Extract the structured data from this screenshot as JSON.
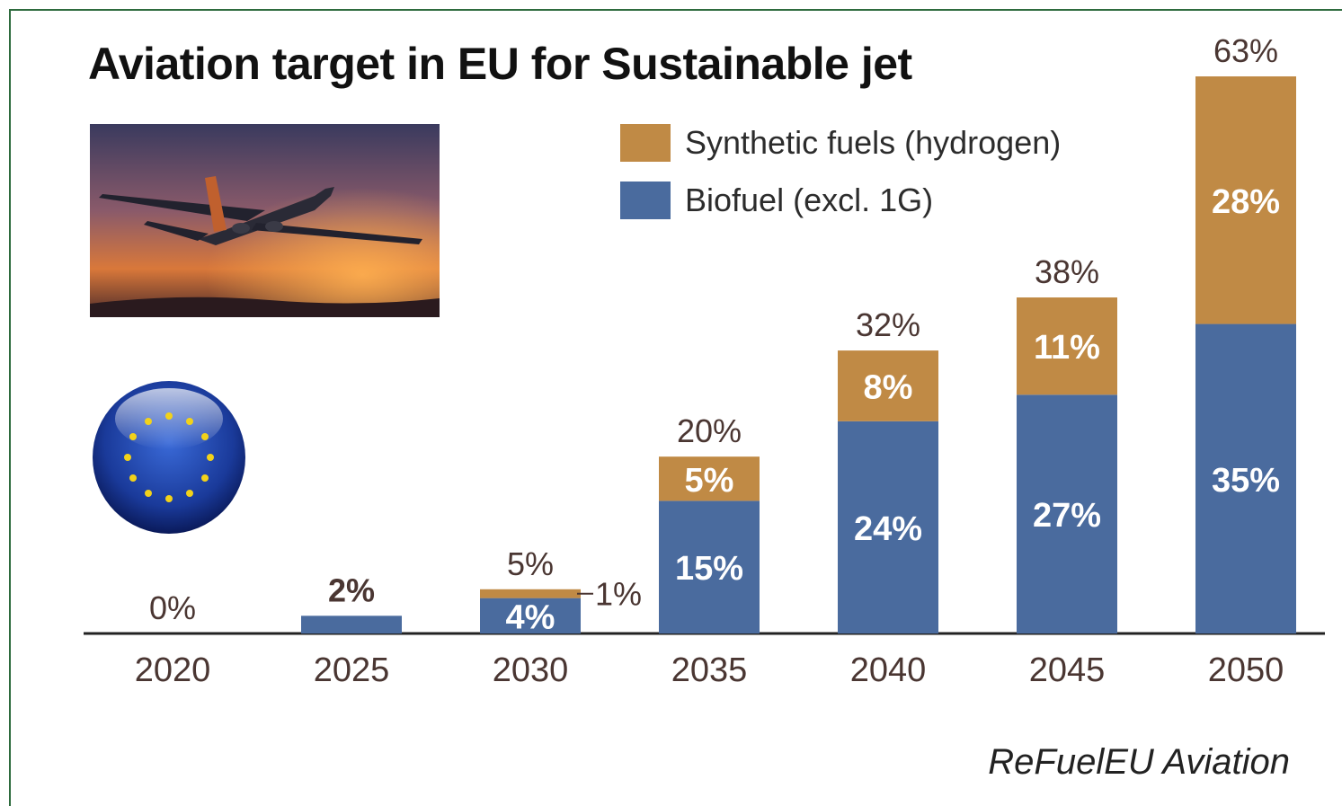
{
  "colors": {
    "frame": "#2e6b3e",
    "biofuel": "#4a6b9e",
    "synthetic": "#c08a45",
    "total_label": "#4a3632",
    "inside_label": "#ffffff",
    "axis": "#222222"
  },
  "chart_data": {
    "type": "bar",
    "stacked": true,
    "title": "Aviation target in EU for Sustainable jet",
    "categories": [
      "2020",
      "2025",
      "2030",
      "2035",
      "2040",
      "2045",
      "2050"
    ],
    "series": [
      {
        "name": "Biofuel (excl. 1G)",
        "values": [
          0,
          2,
          4,
          15,
          24,
          27,
          35
        ]
      },
      {
        "name": "Synthetic fuels (hydrogen)",
        "values": [
          0,
          0,
          1,
          5,
          8,
          11,
          28
        ]
      }
    ],
    "segment_labels": {
      "biofuel": [
        "",
        "",
        "4%",
        "15%",
        "24%",
        "27%",
        "35%"
      ],
      "synthetic": [
        "",
        "",
        "1%",
        "5%",
        "8%",
        "11%",
        "28%"
      ]
    },
    "total_labels": [
      "0%",
      "2%",
      "5%",
      "20%",
      "32%",
      "38%",
      "63%"
    ],
    "ylim": [
      0,
      63
    ],
    "legend": "top-center",
    "grid": false
  },
  "legend": {
    "synthetic_label": "Synthetic fuels (hydrogen)",
    "biofuel_label": "Biofuel (excl. 1G)"
  },
  "images": {
    "photo": "airplane-sunset",
    "emblem": "eu-flag-sphere"
  },
  "source": "ReFuelEU Aviation"
}
